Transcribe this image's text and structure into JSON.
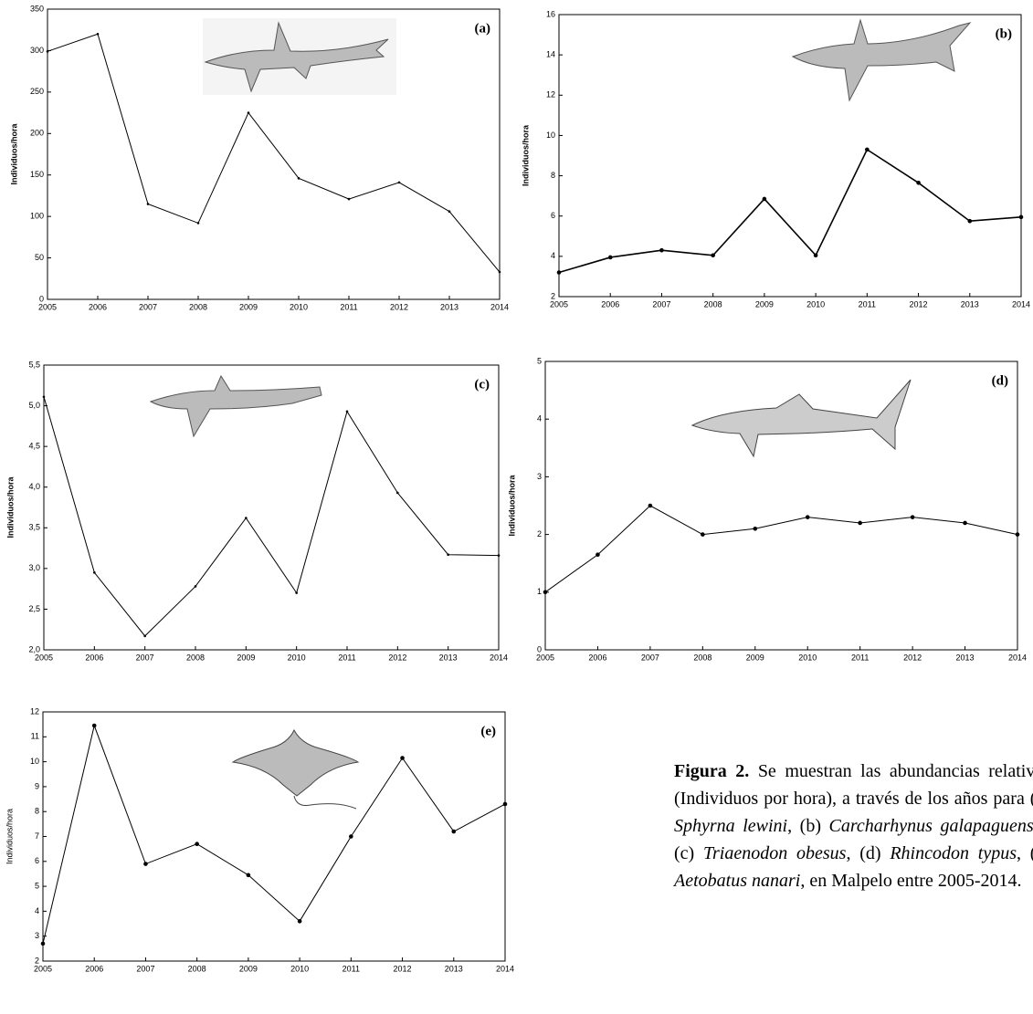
{
  "chart_data": [
    {
      "type": "line",
      "panel_label": "(a)",
      "ylabel": "Individuos/hora",
      "x": [
        2005,
        2006,
        2007,
        2008,
        2009,
        2010,
        2011,
        2012,
        2013,
        2014
      ],
      "xlim": [
        2005,
        2014
      ],
      "xticks": [
        2005,
        2006,
        2007,
        2008,
        2009,
        2010,
        2011,
        2012,
        2013,
        2014
      ],
      "ylim": [
        0,
        350
      ],
      "yticks": [
        0,
        50,
        100,
        150,
        200,
        250,
        300,
        350
      ],
      "series": [
        {
          "color": "#000000",
          "values": [
            299,
            320,
            115,
            92,
            225,
            146,
            121,
            141,
            106,
            33
          ]
        }
      ]
    },
    {
      "type": "line",
      "panel_label": "(b)",
      "ylabel": "Individuos/hora",
      "x": [
        2005,
        2006,
        2007,
        2008,
        2009,
        2010,
        2011,
        2012,
        2013,
        2014
      ],
      "xlim": [
        2005,
        2014
      ],
      "xticks": [
        2005,
        2006,
        2007,
        2008,
        2009,
        2010,
        2011,
        2012,
        2013,
        2014
      ],
      "ylim": [
        2,
        16
      ],
      "yticks": [
        2,
        4,
        6,
        8,
        10,
        12,
        14,
        16
      ],
      "series": [
        {
          "color": "#000000",
          "values": [
            3.2,
            3.95,
            4.3,
            4.05,
            6.85,
            4.05,
            9.3,
            7.65,
            5.75,
            5.95
          ]
        }
      ]
    },
    {
      "type": "line",
      "panel_label": "(c)",
      "ylabel": "Individuos/hora",
      "x": [
        2005,
        2006,
        2007,
        2008,
        2009,
        2010,
        2011,
        2012,
        2013,
        2014
      ],
      "xlim": [
        2005,
        2014
      ],
      "xticks": [
        2005,
        2006,
        2007,
        2008,
        2009,
        2010,
        2011,
        2012,
        2013,
        2014
      ],
      "ylim": [
        2,
        5.5
      ],
      "yticks": [
        {
          "value": 2,
          "label": "2,0"
        },
        {
          "value": 2.5,
          "label": "2,5"
        },
        {
          "value": 3,
          "label": "3,0"
        },
        {
          "value": 3.5,
          "label": "3,5"
        },
        {
          "value": 4,
          "label": "4,0"
        },
        {
          "value": 4.5,
          "label": "4,5"
        },
        {
          "value": 5,
          "label": "5,0"
        },
        {
          "value": 5.5,
          "label": "5,5"
        }
      ],
      "series": [
        {
          "color": "#000000",
          "values": [
            5.11,
            2.95,
            2.17,
            2.78,
            3.62,
            2.7,
            4.93,
            3.93,
            3.17,
            3.16
          ]
        }
      ]
    },
    {
      "type": "line",
      "panel_label": "(d)",
      "ylabel": "Individuos/hora",
      "x": [
        2005,
        2006,
        2007,
        2008,
        2009,
        2010,
        2011,
        2012,
        2013,
        2014
      ],
      "xlim": [
        2005,
        2014
      ],
      "xticks": [
        2005,
        2006,
        2007,
        2008,
        2009,
        2010,
        2011,
        2012,
        2013,
        2014
      ],
      "ylim": [
        0,
        5
      ],
      "yticks": [
        0,
        1,
        2,
        3,
        4,
        5
      ],
      "series": [
        {
          "color": "#000000",
          "values": [
            1.0,
            1.65,
            2.5,
            2.0,
            2.1,
            2.3,
            2.2,
            2.3,
            2.2,
            2.0
          ]
        }
      ]
    },
    {
      "type": "line",
      "panel_label": "(e)",
      "ylabel": "Individuos/hora",
      "x": [
        2005,
        2006,
        2007,
        2008,
        2009,
        2010,
        2011,
        2012,
        2013,
        2014
      ],
      "xlim": [
        2005,
        2014
      ],
      "xticks": [
        2005,
        2006,
        2007,
        2008,
        2009,
        2010,
        2011,
        2012,
        2013,
        2014
      ],
      "ylim": [
        2,
        12
      ],
      "yticks": [
        2,
        3,
        4,
        5,
        6,
        7,
        8,
        9,
        10,
        11,
        12
      ],
      "series": [
        {
          "color": "#000000",
          "values": [
            2.7,
            11.45,
            5.9,
            6.7,
            5.45,
            3.6,
            7.0,
            10.15,
            7.2,
            8.3
          ]
        }
      ]
    }
  ],
  "caption": [
    {
      "text": "Figura 2.",
      "bold": true,
      "italic": false
    },
    {
      "text": " Se muestran las abundancias relativas (Individuos por hora), a través de los años para (a) ",
      "bold": false,
      "italic": false
    },
    {
      "text": "Sphyrna lewini",
      "bold": false,
      "italic": true
    },
    {
      "text": ", (b) ",
      "bold": false,
      "italic": false
    },
    {
      "text": "Carcharhynus galapaguensis",
      "bold": false,
      "italic": true
    },
    {
      "text": ", (c) ",
      "bold": false,
      "italic": false
    },
    {
      "text": "Triaenodon obesus",
      "bold": false,
      "italic": true
    },
    {
      "text": ", (d) ",
      "bold": false,
      "italic": false
    },
    {
      "text": "Rhincodon typus",
      "bold": false,
      "italic": true
    },
    {
      "text": ", (e) ",
      "bold": false,
      "italic": false
    },
    {
      "text": "Aetobatus nanari",
      "bold": false,
      "italic": true
    },
    {
      "text": ", en Malpelo entre 2005-2014.",
      "bold": false,
      "italic": false
    }
  ]
}
